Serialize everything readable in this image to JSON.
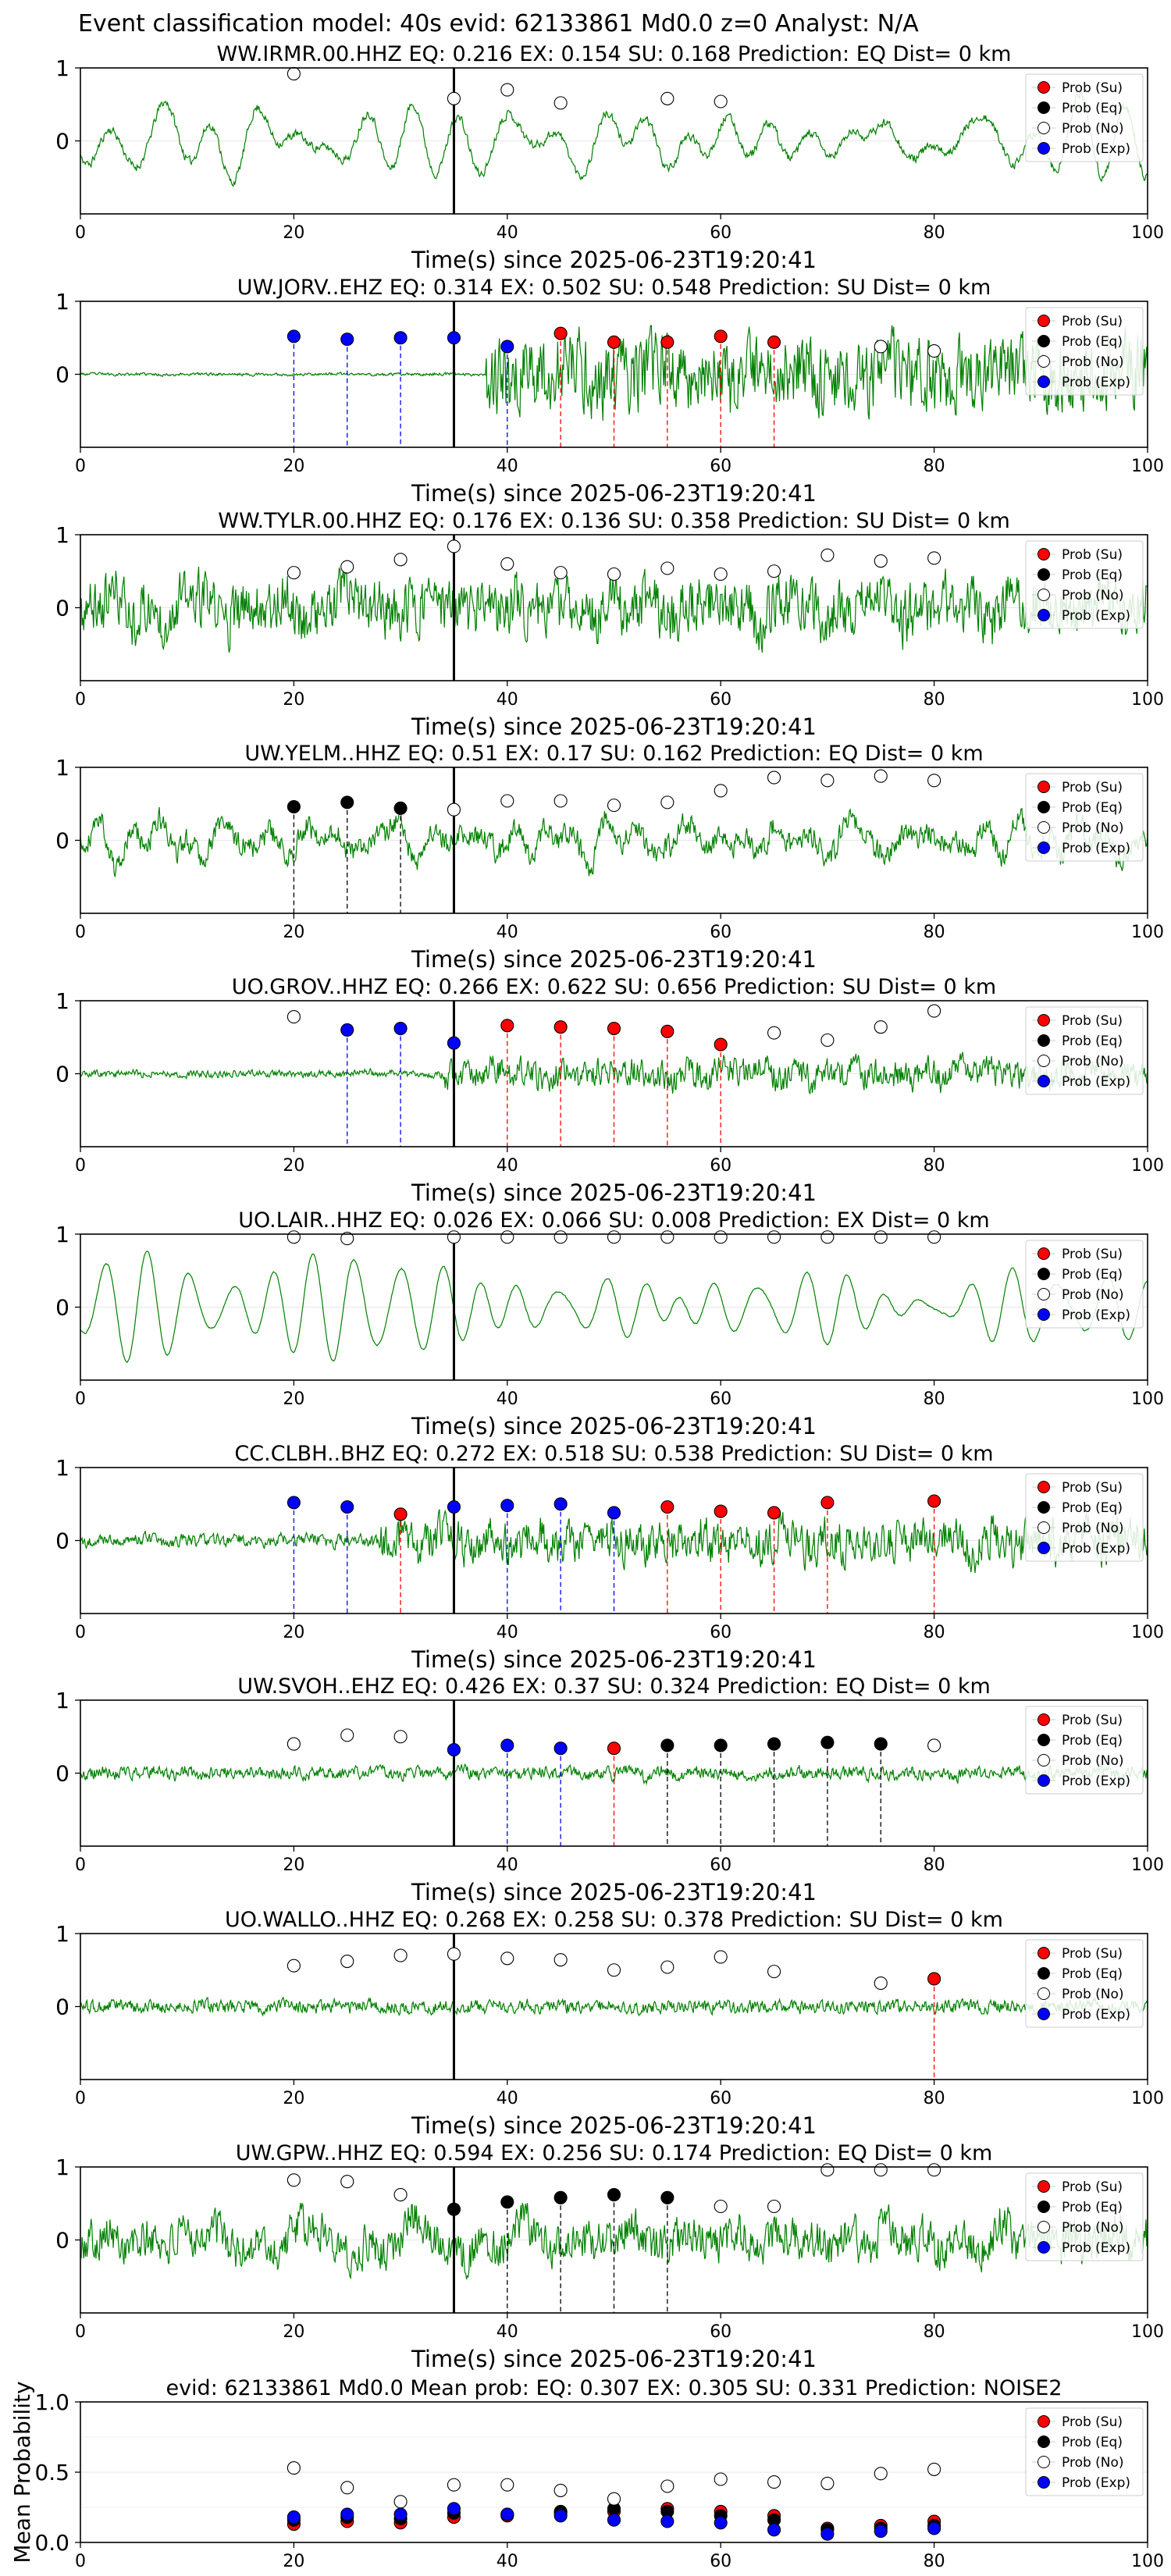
{
  "figure_title": "Event classification model: 40s evid: 62133861 Md0.0 z=0 Analyst: N/A",
  "colors": {
    "waveform": "#008000",
    "su": "#ff0000",
    "eq": "#000000",
    "no": "#ffffff",
    "exp": "#0000ff",
    "arrival": "#000000"
  },
  "legend_labels": [
    "Prob (Su)",
    "Prob (Eq)",
    "Prob (No)",
    "Prob (Exp)"
  ],
  "chart_data": [
    {
      "type": "line",
      "title": "WW.IRMR.00.HHZ   EQ: 0.216  EX: 0.154  SU: 0.168   Prediction: EQ    Dist= 0 km",
      "xlabel": "Time(s) since 2025-06-23T19:20:41",
      "xlim": [
        0,
        100
      ],
      "ylim": [
        -1,
        1
      ],
      "xticks": [
        0,
        20,
        40,
        60,
        80,
        100
      ],
      "yticks": [
        0,
        1
      ],
      "arrival_time": 35,
      "wave": {
        "amp": 0.6,
        "lf": 0.9,
        "noise": 0.15,
        "seed": 11,
        "onset": 0
      },
      "probs": [
        {
          "t": 20,
          "cls": "no",
          "p": 0.92
        },
        {
          "t": 35,
          "cls": "no",
          "p": 0.58
        },
        {
          "t": 40,
          "cls": "no",
          "p": 0.7
        },
        {
          "t": 45,
          "cls": "no",
          "p": 0.52
        },
        {
          "t": 55,
          "cls": "no",
          "p": 0.58
        },
        {
          "t": 60,
          "cls": "no",
          "p": 0.54
        }
      ]
    },
    {
      "type": "line",
      "title": "UW.JORV..EHZ   EQ: 0.314  EX: 0.502  SU: 0.548   Prediction: SU    Dist= 0 km",
      "xlabel": "Time(s) since 2025-06-23T19:20:41",
      "xlim": [
        0,
        100
      ],
      "ylim": [
        -1,
        1
      ],
      "xticks": [
        0,
        20,
        40,
        60,
        80,
        100
      ],
      "yticks": [
        0,
        1
      ],
      "arrival_time": 35,
      "wave": {
        "amp": 0.9,
        "lf": 0.2,
        "noise": 0.8,
        "seed": 23,
        "onset": 38,
        "pre": 0.04
      },
      "probs": [
        {
          "t": 20,
          "cls": "exp",
          "p": 0.52
        },
        {
          "t": 25,
          "cls": "exp",
          "p": 0.48
        },
        {
          "t": 30,
          "cls": "exp",
          "p": 0.5
        },
        {
          "t": 35,
          "cls": "exp",
          "p": 0.5
        },
        {
          "t": 40,
          "cls": "exp",
          "p": 0.38
        },
        {
          "t": 45,
          "cls": "su",
          "p": 0.56
        },
        {
          "t": 50,
          "cls": "su",
          "p": 0.44
        },
        {
          "t": 55,
          "cls": "su",
          "p": 0.44
        },
        {
          "t": 60,
          "cls": "su",
          "p": 0.52
        },
        {
          "t": 65,
          "cls": "su",
          "p": 0.44
        },
        {
          "t": 75,
          "cls": "no",
          "p": 0.38
        },
        {
          "t": 80,
          "cls": "no",
          "p": 0.32
        }
      ]
    },
    {
      "type": "line",
      "title": "WW.TYLR.00.HHZ   EQ: 0.176  EX: 0.136  SU: 0.358   Prediction: SU    Dist= 0 km",
      "xlabel": "Time(s) since 2025-06-23T19:20:41",
      "xlim": [
        0,
        100
      ],
      "ylim": [
        -1,
        1
      ],
      "xticks": [
        0,
        20,
        40,
        60,
        80,
        100
      ],
      "yticks": [
        0,
        1
      ],
      "arrival_time": 35,
      "wave": {
        "amp": 0.7,
        "lf": 0.3,
        "noise": 0.8,
        "seed": 37,
        "onset": 0
      },
      "probs": [
        {
          "t": 20,
          "cls": "no",
          "p": 0.48
        },
        {
          "t": 25,
          "cls": "no",
          "p": 0.56
        },
        {
          "t": 30,
          "cls": "no",
          "p": 0.66
        },
        {
          "t": 35,
          "cls": "no",
          "p": 0.84
        },
        {
          "t": 40,
          "cls": "no",
          "p": 0.6
        },
        {
          "t": 45,
          "cls": "no",
          "p": 0.48
        },
        {
          "t": 50,
          "cls": "no",
          "p": 0.46
        },
        {
          "t": 55,
          "cls": "no",
          "p": 0.54
        },
        {
          "t": 60,
          "cls": "no",
          "p": 0.46
        },
        {
          "t": 65,
          "cls": "no",
          "p": 0.5
        },
        {
          "t": 70,
          "cls": "no",
          "p": 0.72
        },
        {
          "t": 75,
          "cls": "no",
          "p": 0.64
        },
        {
          "t": 80,
          "cls": "no",
          "p": 0.68
        }
      ]
    },
    {
      "type": "line",
      "title": "UW.YELM..HHZ   EQ: 0.51  EX: 0.17  SU: 0.162   Prediction: EQ    Dist= 0 km",
      "xlabel": "Time(s) since 2025-06-23T19:20:41",
      "xlim": [
        0,
        100
      ],
      "ylim": [
        -1,
        1
      ],
      "xticks": [
        0,
        20,
        40,
        60,
        80,
        100
      ],
      "yticks": [
        0,
        1
      ],
      "arrival_time": 35,
      "wave": {
        "amp": 0.6,
        "lf": 0.6,
        "noise": 0.4,
        "seed": 41,
        "onset": 0
      },
      "probs": [
        {
          "t": 20,
          "cls": "eq",
          "p": 0.46
        },
        {
          "t": 25,
          "cls": "eq",
          "p": 0.52
        },
        {
          "t": 30,
          "cls": "eq",
          "p": 0.44
        },
        {
          "t": 35,
          "cls": "no",
          "p": 0.42
        },
        {
          "t": 40,
          "cls": "no",
          "p": 0.54
        },
        {
          "t": 45,
          "cls": "no",
          "p": 0.54
        },
        {
          "t": 50,
          "cls": "no",
          "p": 0.48
        },
        {
          "t": 55,
          "cls": "no",
          "p": 0.52
        },
        {
          "t": 60,
          "cls": "no",
          "p": 0.68
        },
        {
          "t": 65,
          "cls": "no",
          "p": 0.86
        },
        {
          "t": 70,
          "cls": "no",
          "p": 0.82
        },
        {
          "t": 75,
          "cls": "no",
          "p": 0.88
        },
        {
          "t": 80,
          "cls": "no",
          "p": 0.82
        }
      ]
    },
    {
      "type": "line",
      "title": "UO.GROV..HHZ   EQ: 0.266  EX: 0.622  SU: 0.656   Prediction: SU    Dist= 0 km",
      "xlabel": "Time(s) since 2025-06-23T19:20:41",
      "xlim": [
        0,
        100
      ],
      "ylim": [
        -1,
        1
      ],
      "xticks": [
        0,
        20,
        40,
        60,
        80,
        100
      ],
      "yticks": [
        0,
        1
      ],
      "arrival_time": 35,
      "wave": {
        "amp": 0.55,
        "lf": 0.2,
        "noise": 0.5,
        "seed": 53,
        "onset": 34,
        "pre": 0.25
      },
      "probs": [
        {
          "t": 20,
          "cls": "no",
          "p": 0.78
        },
        {
          "t": 25,
          "cls": "exp",
          "p": 0.6
        },
        {
          "t": 30,
          "cls": "exp",
          "p": 0.62
        },
        {
          "t": 35,
          "cls": "exp",
          "p": 0.42
        },
        {
          "t": 40,
          "cls": "su",
          "p": 0.66
        },
        {
          "t": 45,
          "cls": "su",
          "p": 0.64
        },
        {
          "t": 50,
          "cls": "su",
          "p": 0.62
        },
        {
          "t": 55,
          "cls": "su",
          "p": 0.58
        },
        {
          "t": 60,
          "cls": "su",
          "p": 0.4
        },
        {
          "t": 65,
          "cls": "no",
          "p": 0.56
        },
        {
          "t": 70,
          "cls": "no",
          "p": 0.46
        },
        {
          "t": 75,
          "cls": "no",
          "p": 0.64
        },
        {
          "t": 80,
          "cls": "no",
          "p": 0.86
        }
      ]
    },
    {
      "type": "line",
      "title": "UO.LAIR..HHZ   EQ: 0.026  EX: 0.066  SU: 0.008   Prediction: EX    Dist= 0 km",
      "xlabel": "Time(s) since 2025-06-23T19:20:41",
      "xlim": [
        0,
        100
      ],
      "ylim": [
        -1,
        1
      ],
      "xticks": [
        0,
        20,
        40,
        60,
        80,
        100
      ],
      "yticks": [
        0,
        1
      ],
      "arrival_time": 35,
      "wave": {
        "amp": 0.75,
        "lf": 1.0,
        "noise": 0.02,
        "seed": 61,
        "onset": 0
      },
      "probs": [
        {
          "t": 20,
          "cls": "no",
          "p": 0.96
        },
        {
          "t": 25,
          "cls": "no",
          "p": 0.94
        },
        {
          "t": 35,
          "cls": "no",
          "p": 0.96
        },
        {
          "t": 40,
          "cls": "no",
          "p": 0.96
        },
        {
          "t": 45,
          "cls": "no",
          "p": 0.96
        },
        {
          "t": 50,
          "cls": "no",
          "p": 0.96
        },
        {
          "t": 55,
          "cls": "no",
          "p": 0.96
        },
        {
          "t": 60,
          "cls": "no",
          "p": 0.96
        },
        {
          "t": 65,
          "cls": "no",
          "p": 0.96
        },
        {
          "t": 70,
          "cls": "no",
          "p": 0.96
        },
        {
          "t": 75,
          "cls": "no",
          "p": 0.96
        },
        {
          "t": 80,
          "cls": "no",
          "p": 0.96
        }
      ]
    },
    {
      "type": "line",
      "title": "CC.CLBH..BHZ   EQ: 0.272  EX: 0.518  SU: 0.538   Prediction: SU    Dist= 0 km",
      "xlabel": "Time(s) since 2025-06-23T19:20:41",
      "xlim": [
        0,
        100
      ],
      "ylim": [
        -1,
        1
      ],
      "xticks": [
        0,
        20,
        40,
        60,
        80,
        100
      ],
      "yticks": [
        0,
        1
      ],
      "arrival_time": 35,
      "wave": {
        "amp": 0.7,
        "lf": 0.2,
        "noise": 0.6,
        "seed": 71,
        "onset": 28,
        "pre": 0.3
      },
      "probs": [
        {
          "t": 20,
          "cls": "exp",
          "p": 0.52
        },
        {
          "t": 25,
          "cls": "exp",
          "p": 0.46
        },
        {
          "t": 30,
          "cls": "su",
          "p": 0.36
        },
        {
          "t": 35,
          "cls": "exp",
          "p": 0.46
        },
        {
          "t": 40,
          "cls": "exp",
          "p": 0.48
        },
        {
          "t": 45,
          "cls": "exp",
          "p": 0.5
        },
        {
          "t": 50,
          "cls": "exp",
          "p": 0.38
        },
        {
          "t": 55,
          "cls": "su",
          "p": 0.46
        },
        {
          "t": 60,
          "cls": "su",
          "p": 0.4
        },
        {
          "t": 65,
          "cls": "su",
          "p": 0.38
        },
        {
          "t": 70,
          "cls": "su",
          "p": 0.52
        },
        {
          "t": 80,
          "cls": "su",
          "p": 0.54
        }
      ]
    },
    {
      "type": "line",
      "title": "UW.SVOH..EHZ   EQ: 0.426  EX: 0.37  SU: 0.324   Prediction: EQ    Dist= 0 km",
      "xlabel": "Time(s) since 2025-06-23T19:20:41",
      "xlim": [
        0,
        100
      ],
      "ylim": [
        -1,
        1
      ],
      "xticks": [
        0,
        20,
        40,
        60,
        80,
        100
      ],
      "yticks": [
        0,
        1
      ],
      "arrival_time": 35,
      "wave": {
        "amp": 0.25,
        "lf": 0.2,
        "noise": 0.5,
        "seed": 83,
        "onset": 0
      },
      "probs": [
        {
          "t": 20,
          "cls": "no",
          "p": 0.4
        },
        {
          "t": 25,
          "cls": "no",
          "p": 0.52
        },
        {
          "t": 30,
          "cls": "no",
          "p": 0.5
        },
        {
          "t": 35,
          "cls": "exp",
          "p": 0.32
        },
        {
          "t": 40,
          "cls": "exp",
          "p": 0.38
        },
        {
          "t": 45,
          "cls": "exp",
          "p": 0.34
        },
        {
          "t": 50,
          "cls": "su",
          "p": 0.34
        },
        {
          "t": 55,
          "cls": "eq",
          "p": 0.38
        },
        {
          "t": 60,
          "cls": "eq",
          "p": 0.38
        },
        {
          "t": 65,
          "cls": "eq",
          "p": 0.4
        },
        {
          "t": 70,
          "cls": "eq",
          "p": 0.42
        },
        {
          "t": 75,
          "cls": "eq",
          "p": 0.4
        },
        {
          "t": 80,
          "cls": "no",
          "p": 0.38
        }
      ]
    },
    {
      "type": "line",
      "title": "UO.WALLO..HHZ   EQ: 0.268  EX: 0.258  SU: 0.378   Prediction: SU    Dist= 0 km",
      "xlabel": "Time(s) since 2025-06-23T19:20:41",
      "xlim": [
        0,
        100
      ],
      "ylim": [
        -1,
        1
      ],
      "xticks": [
        0,
        20,
        40,
        60,
        80,
        100
      ],
      "yticks": [
        0,
        1
      ],
      "arrival_time": 35,
      "wave": {
        "amp": 0.22,
        "lf": 0.1,
        "noise": 0.6,
        "seed": 97,
        "onset": 0
      },
      "probs": [
        {
          "t": 20,
          "cls": "no",
          "p": 0.56
        },
        {
          "t": 25,
          "cls": "no",
          "p": 0.62
        },
        {
          "t": 30,
          "cls": "no",
          "p": 0.7
        },
        {
          "t": 35,
          "cls": "no",
          "p": 0.72
        },
        {
          "t": 40,
          "cls": "no",
          "p": 0.66
        },
        {
          "t": 45,
          "cls": "no",
          "p": 0.64
        },
        {
          "t": 50,
          "cls": "no",
          "p": 0.5
        },
        {
          "t": 55,
          "cls": "no",
          "p": 0.54
        },
        {
          "t": 60,
          "cls": "no",
          "p": 0.68
        },
        {
          "t": 65,
          "cls": "no",
          "p": 0.48
        },
        {
          "t": 75,
          "cls": "no",
          "p": 0.32
        },
        {
          "t": 80,
          "cls": "su",
          "p": 0.38
        }
      ]
    },
    {
      "type": "line",
      "title": "UW.GPW..HHZ   EQ: 0.594  EX: 0.256  SU: 0.174   Prediction: EQ    Dist= 0 km",
      "xlabel": "Time(s) since 2025-06-23T19:20:41",
      "xlim": [
        0,
        100
      ],
      "ylim": [
        -1,
        1
      ],
      "xticks": [
        0,
        20,
        40,
        60,
        80,
        100
      ],
      "yticks": [
        0,
        1
      ],
      "arrival_time": 35,
      "wave": {
        "amp": 0.6,
        "lf": 0.4,
        "noise": 0.7,
        "seed": 101,
        "onset": 0
      },
      "probs": [
        {
          "t": 20,
          "cls": "no",
          "p": 0.82
        },
        {
          "t": 25,
          "cls": "no",
          "p": 0.8
        },
        {
          "t": 30,
          "cls": "no",
          "p": 0.62
        },
        {
          "t": 35,
          "cls": "eq",
          "p": 0.42
        },
        {
          "t": 40,
          "cls": "eq",
          "p": 0.52
        },
        {
          "t": 45,
          "cls": "eq",
          "p": 0.58
        },
        {
          "t": 50,
          "cls": "eq",
          "p": 0.62
        },
        {
          "t": 55,
          "cls": "eq",
          "p": 0.58
        },
        {
          "t": 60,
          "cls": "no",
          "p": 0.46
        },
        {
          "t": 65,
          "cls": "no",
          "p": 0.46
        },
        {
          "t": 70,
          "cls": "no",
          "p": 0.96
        },
        {
          "t": 75,
          "cls": "no",
          "p": 0.96
        },
        {
          "t": 80,
          "cls": "no",
          "p": 0.96
        }
      ]
    },
    {
      "type": "scatter",
      "title": "evid: 62133861  Md0.0   Mean prob:   EQ: 0.307  EX: 0.305  SU: 0.331   Prediction: NOISE2",
      "xlabel": "",
      "ylabel": "Mean Probability",
      "xlim": [
        0,
        100
      ],
      "ylim": [
        0,
        1
      ],
      "xticks": [
        0,
        20,
        40,
        60,
        80,
        100
      ],
      "yticks": [
        0.0,
        0.5,
        1.0
      ],
      "ytick_labels": [
        "0.0",
        "0.5",
        "1.0"
      ],
      "x": [
        20,
        25,
        30,
        35,
        40,
        45,
        50,
        55,
        60,
        65,
        70,
        75,
        80
      ],
      "series": [
        {
          "name": "Prob (Su)",
          "cls": "su",
          "values": [
            0.13,
            0.15,
            0.14,
            0.18,
            0.19,
            0.21,
            0.22,
            0.24,
            0.22,
            0.19,
            0.1,
            0.12,
            0.15
          ]
        },
        {
          "name": "Prob (Eq)",
          "cls": "eq",
          "values": [
            0.16,
            0.18,
            0.17,
            0.21,
            0.2,
            0.22,
            0.24,
            0.22,
            0.19,
            0.16,
            0.09,
            0.1,
            0.12
          ]
        },
        {
          "name": "Prob (No)",
          "cls": "no",
          "values": [
            0.53,
            0.39,
            0.29,
            0.41,
            0.41,
            0.37,
            0.31,
            0.4,
            0.45,
            0.43,
            0.42,
            0.49,
            0.52
          ]
        },
        {
          "name": "Prob (Exp)",
          "cls": "exp",
          "values": [
            0.18,
            0.2,
            0.2,
            0.24,
            0.2,
            0.19,
            0.16,
            0.15,
            0.14,
            0.09,
            0.06,
            0.08,
            0.1
          ]
        }
      ]
    }
  ]
}
